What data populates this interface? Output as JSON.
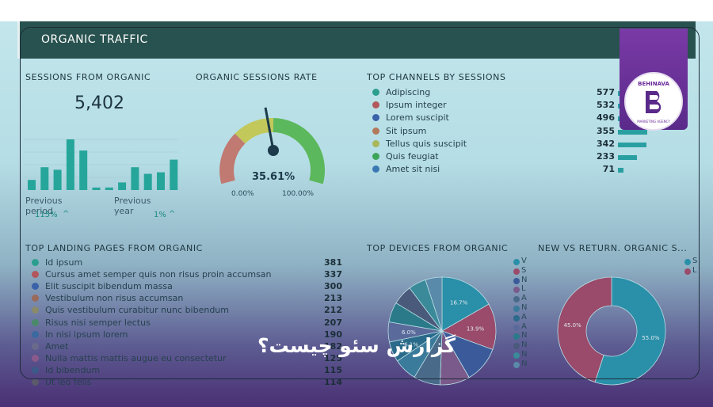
{
  "header": {
    "title": "ORGANIC TRAFFIC"
  },
  "sessions": {
    "title": "SESSIONS FROM ORGANIC",
    "value": "5,402",
    "bars": [
      0.2,
      0.45,
      0.4,
      1.0,
      0.78,
      0.05,
      0.05,
      0.15,
      0.45,
      0.32,
      0.35,
      0.6
    ],
    "prev_period_label": "Previous period",
    "prev_year_label": "Previous year",
    "prev_period_change": "115%",
    "prev_year_change": "1%"
  },
  "rate": {
    "title": "ORGANIC SESSIONS RATE",
    "value": "35.61%",
    "min": "0.00%",
    "max": "100.00%",
    "fraction": 0.3561
  },
  "channels": {
    "title": "TOP CHANNELS BY SESSIONS",
    "items": [
      {
        "label": "Adipiscing",
        "value": "577",
        "num": 577,
        "color": "#2b9e8f"
      },
      {
        "label": "Ipsum integer",
        "value": "532",
        "num": 532,
        "color": "#b2575a"
      },
      {
        "label": "Lorem suscipit",
        "value": "496",
        "num": 496,
        "color": "#3a62a9"
      },
      {
        "label": "Sit ipsum",
        "value": "355",
        "num": 355,
        "color": "#b27a5a"
      },
      {
        "label": "Tellus quis suscipit",
        "value": "342",
        "num": 342,
        "color": "#a9b65a"
      },
      {
        "label": "Quis feugiat",
        "value": "233",
        "num": 233,
        "color": "#3da55a"
      },
      {
        "label": "Amet sit nisi",
        "value": "71",
        "num": 71,
        "color": "#3a78b3"
      }
    ]
  },
  "landing": {
    "title": "TOP LANDING PAGES FROM ORGANIC",
    "items": [
      {
        "label": "Id ipsum",
        "value": "381",
        "color": "#2b9e8f"
      },
      {
        "label": "Cursus amet semper quis non risus proin accumsan",
        "value": "337",
        "color": "#b2575a"
      },
      {
        "label": "Elit suscipit bibendum massa",
        "value": "300",
        "color": "#3a62a9"
      },
      {
        "label": "Vestibulum non risus accumsan",
        "value": "213",
        "color": "#9a6a5a"
      },
      {
        "label": "Quis vestibulum curabitur nunc bibendum",
        "value": "212",
        "color": "#8a8a6a"
      },
      {
        "label": "Risus nisi semper lectus",
        "value": "207",
        "color": "#4a8a6a"
      },
      {
        "label": "In nisi ipsum lorem",
        "value": "190",
        "color": "#3a6aa0"
      },
      {
        "label": "Amet",
        "value": "182",
        "color": "#6a6a8a"
      },
      {
        "label": "Nulla mattis mattis augue eu consectetur",
        "value": "125",
        "color": "#8a5a8a"
      },
      {
        "label": "Id bibendum",
        "value": "115",
        "color": "#3a5a8a"
      },
      {
        "label": "Ut leo felis",
        "value": "114",
        "color": "#5a5a6a"
      }
    ]
  },
  "devices": {
    "title": "TOP DEVICES FROM ORGANIC",
    "slices": [
      {
        "value": 16.7,
        "label": "16.7%",
        "color": "#2a8fa8"
      },
      {
        "value": 13.9,
        "label": "13.9%",
        "color": "#9a4a6a"
      },
      {
        "value": 11.0,
        "label": "",
        "color": "#3a5a9a"
      },
      {
        "value": 9.0,
        "label": "",
        "color": "#7a5a8a"
      },
      {
        "value": 8.0,
        "label": "",
        "color": "#4a6a8a"
      },
      {
        "value": 7.0,
        "label": "",
        "color": "#3a7a9a"
      },
      {
        "value": 6.1,
        "label": "6.1%",
        "color": "#2a6a8a"
      },
      {
        "value": 6.0,
        "label": "6.0%",
        "color": "#5a6a9a"
      },
      {
        "value": 6.0,
        "label": "",
        "color": "#2a7a8a"
      },
      {
        "value": 6.0,
        "label": "",
        "color": "#4a5a7a"
      },
      {
        "value": 5.3,
        "label": "",
        "color": "#3a8a9a"
      },
      {
        "value": 5.0,
        "label": "",
        "color": "#5a8aaa"
      }
    ],
    "legend": [
      "V",
      "S",
      "N",
      "L",
      "A",
      "N",
      "A",
      "A",
      "N",
      "N",
      "N",
      "N"
    ],
    "legend_colors": [
      "#2a8fa8",
      "#9a4a6a",
      "#3a5a9a",
      "#7a5a8a",
      "#4a6a8a",
      "#3a7a9a",
      "#2a6a8a",
      "#5a6a9a",
      "#2a7a8a",
      "#4a5a7a",
      "#3a8a9a",
      "#5a8aaa"
    ]
  },
  "newvsret": {
    "title": "NEW VS RETURN. ORGANIC S...",
    "slices": [
      {
        "value": 55.0,
        "label": "55.0%",
        "color": "#2a8fa8"
      },
      {
        "value": 45.0,
        "label": "45.0%",
        "color": "#9a4a6a"
      }
    ],
    "legend": [
      "S",
      "L"
    ],
    "legend_colors": [
      "#2a8fa8",
      "#9a4a6a"
    ]
  },
  "brand": {
    "name": "BEHINAVA",
    "tagline": "MARKETING AGENCY"
  },
  "banner": {
    "text": "گزارش سئو چیست؟"
  }
}
